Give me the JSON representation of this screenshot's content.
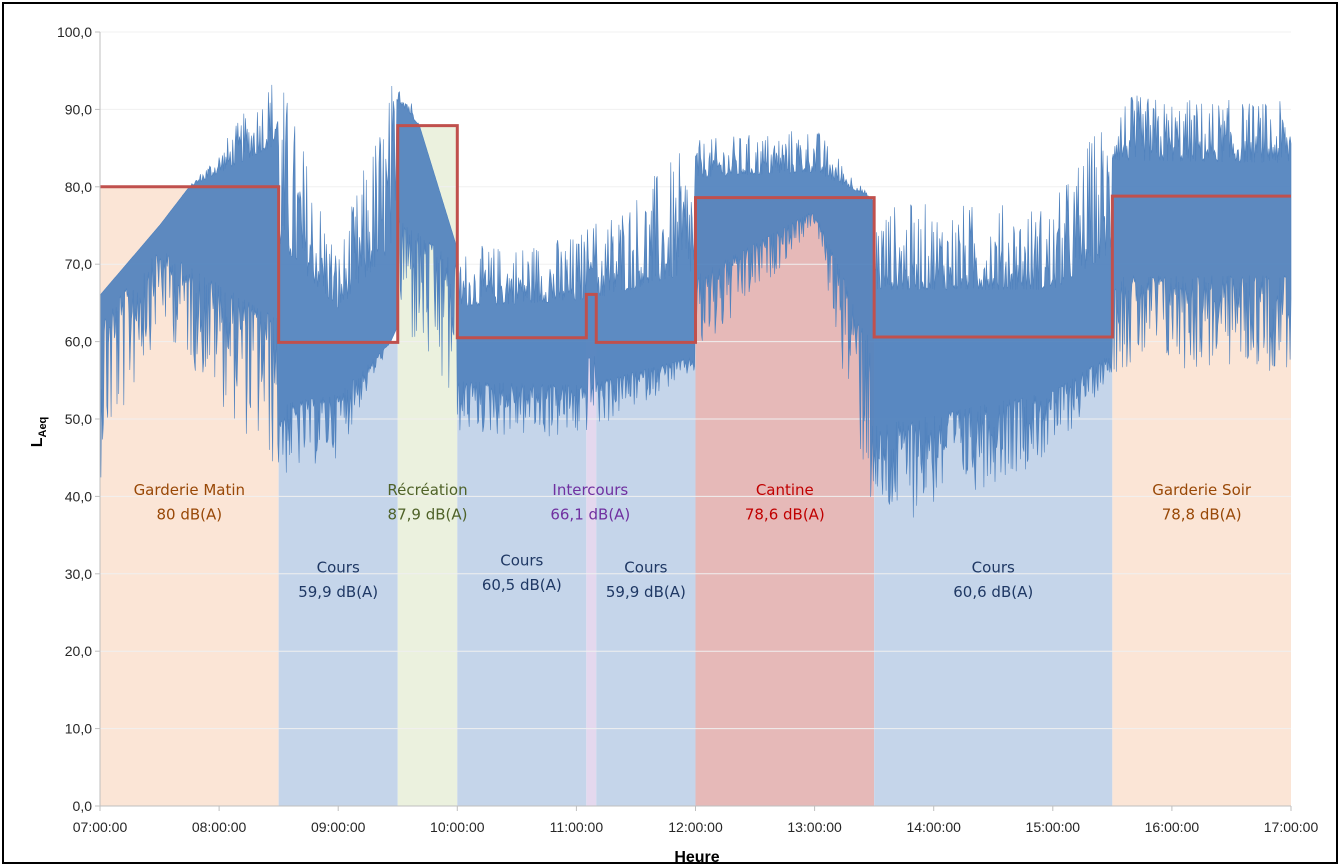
{
  "chart_data": {
    "type": "area",
    "xlabel": "Heure",
    "ylabel_main": "L",
    "ylabel_sub": "Aeq",
    "ylim": [
      0,
      100
    ],
    "xlim_hours": [
      7,
      17
    ],
    "x_ticks": [
      "07:00:00",
      "08:00:00",
      "09:00:00",
      "10:00:00",
      "11:00:00",
      "12:00:00",
      "13:00:00",
      "14:00:00",
      "15:00:00",
      "16:00:00",
      "17:00:00"
    ],
    "y_ticks": [
      "0,0",
      "10,0",
      "20,0",
      "30,0",
      "40,0",
      "50,0",
      "60,0",
      "70,0",
      "80,0",
      "90,0",
      "100,0"
    ],
    "grid": true,
    "colors": {
      "measured_series": "#4f81bd",
      "average_line": "#c0504d",
      "garderie_fill": "#fbe5d6",
      "cours_fill": "#c5d5ea",
      "recreation_fill": "#ebf1de",
      "intercours_fill": "#e4d8ee",
      "cantine_fill": "#e6b9b8"
    },
    "periods": [
      {
        "name": "Garderie Matin",
        "value_label": "80 dB(A)",
        "start": "07:00",
        "end": "08:30",
        "laeq": 80.0,
        "category": "garderie",
        "label_color": "#984807"
      },
      {
        "name": "Cours",
        "value_label": "59,9 dB(A)",
        "start": "08:30",
        "end": "09:30",
        "laeq": 59.9,
        "category": "cours",
        "label_color": "#1f3864"
      },
      {
        "name": "Récréation",
        "value_label": "87,9 dB(A)",
        "start": "09:30",
        "end": "10:00",
        "laeq": 87.9,
        "category": "recreation",
        "label_color": "#4f6228"
      },
      {
        "name": "Cours",
        "value_label": "60,5 dB(A)",
        "start": "10:00",
        "end": "11:05",
        "laeq": 60.5,
        "category": "cours",
        "label_color": "#1f3864"
      },
      {
        "name": "Intercours",
        "value_label": "66,1 dB(A)",
        "start": "11:05",
        "end": "11:10",
        "laeq": 66.1,
        "category": "intercours",
        "label_color": "#7030a0"
      },
      {
        "name": "Cours",
        "value_label": "59,9 dB(A)",
        "start": "11:10",
        "end": "12:00",
        "laeq": 59.9,
        "category": "cours",
        "label_color": "#1f3864"
      },
      {
        "name": "Cantine",
        "value_label": "78,6 dB(A)",
        "start": "12:00",
        "end": "13:30",
        "laeq": 78.6,
        "category": "cantine",
        "label_color": "#c00000"
      },
      {
        "name": "Cours",
        "value_label": "60,6 dB(A)",
        "start": "13:30",
        "end": "15:30",
        "laeq": 60.6,
        "category": "cours",
        "label_color": "#1f3864"
      },
      {
        "name": "Garderie Soir",
        "value_label": "78,8 dB(A)",
        "start": "15:30",
        "end": "17:00",
        "laeq": 78.8,
        "category": "garderie",
        "label_color": "#984807"
      }
    ],
    "measured_envelope": [
      {
        "time": "07:00",
        "min": 42,
        "max": 66
      },
      {
        "time": "07:30",
        "min": 62,
        "max": 75
      },
      {
        "time": "08:00",
        "min": 52,
        "max": 85
      },
      {
        "time": "08:30",
        "min": 42,
        "max": 96
      },
      {
        "time": "09:00",
        "min": 45,
        "max": 72
      },
      {
        "time": "09:30",
        "min": 62,
        "max": 97
      },
      {
        "time": "10:00",
        "min": 48,
        "max": 72
      },
      {
        "time": "11:00",
        "min": 47,
        "max": 74
      },
      {
        "time": "12:00",
        "min": 56,
        "max": 86
      },
      {
        "time": "13:00",
        "min": 75,
        "max": 88
      },
      {
        "time": "13:30",
        "min": 35,
        "max": 78
      },
      {
        "time": "15:00",
        "min": 45,
        "max": 78
      },
      {
        "time": "15:30",
        "min": 56,
        "max": 92
      },
      {
        "time": "17:00",
        "min": 56,
        "max": 91
      }
    ]
  }
}
